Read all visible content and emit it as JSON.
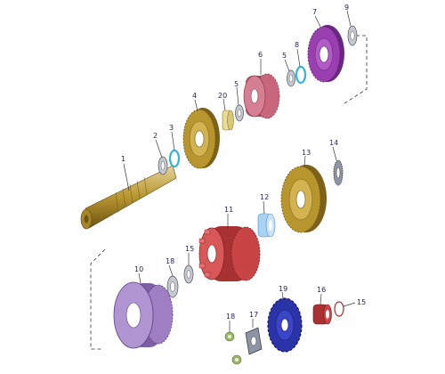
{
  "diagram": {
    "type": "exploded-parts-view",
    "colors": {
      "gold": "#b8962e",
      "purple": "#9a3fb0",
      "pink": "#c8677c",
      "red": "#c94545",
      "blue": "#2a33a8",
      "lilac": "#9f7fc4",
      "cyan": "#35b5d5",
      "lightblue": "#a9d3f2",
      "steel": "#8c94a6",
      "green": "#9bb86a"
    },
    "labels": [
      {
        "id": "1"
      },
      {
        "id": "2"
      },
      {
        "id": "3"
      },
      {
        "id": "4"
      },
      {
        "id": "20"
      },
      {
        "id": "5"
      },
      {
        "id": "6"
      },
      {
        "id": "5"
      },
      {
        "id": "8"
      },
      {
        "id": "7"
      },
      {
        "id": "9"
      },
      {
        "id": "14"
      },
      {
        "id": "13"
      },
      {
        "id": "12"
      },
      {
        "id": "11"
      },
      {
        "id": "15"
      },
      {
        "id": "18"
      },
      {
        "id": "10"
      },
      {
        "id": "19"
      },
      {
        "id": "16"
      },
      {
        "id": "15"
      },
      {
        "id": "18"
      },
      {
        "id": "17"
      }
    ]
  }
}
